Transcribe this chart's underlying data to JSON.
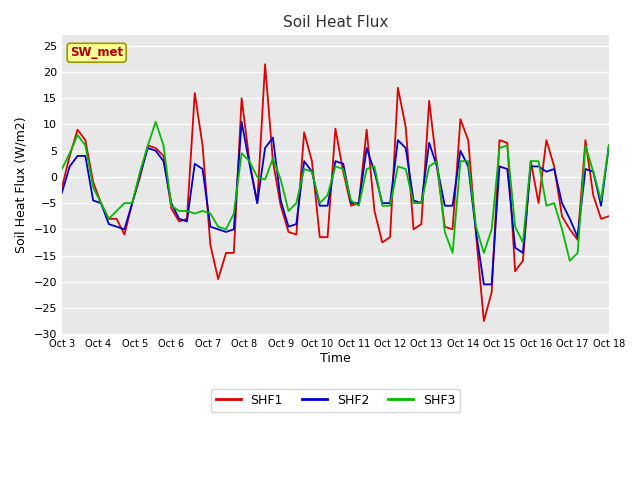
{
  "title": "Soil Heat Flux",
  "xlabel": "Time",
  "ylabel": "Soil Heat Flux (W/m2)",
  "ylim": [
    -30,
    27
  ],
  "yticks": [
    -30,
    -25,
    -20,
    -15,
    -10,
    -5,
    0,
    5,
    10,
    15,
    20,
    25
  ],
  "xtick_labels": [
    "Oct 3",
    "Oct 4",
    "Oct 5",
    "Oct 6",
    "Oct 7",
    "Oct 8",
    "Oct 9",
    "Oct 10",
    "Oct 11",
    "Oct 12",
    "Oct 13",
    "Oct 14",
    "Oct 15",
    "Oct 16",
    "Oct 17",
    "Oct 18"
  ],
  "legend_label": "SW_met",
  "series_labels": [
    "SHF1",
    "SHF2",
    "SHF3"
  ],
  "colors": [
    "#dd0000",
    "#0000cc",
    "#00bb00"
  ],
  "fig_bg": "#ffffff",
  "plot_bg": "#e8e8e8",
  "shf1": [
    -2.0,
    4.0,
    9.0,
    7.0,
    -1.0,
    -5.0,
    -8.0,
    -8.0,
    -11.0,
    -5.0,
    0.0,
    6.0,
    5.5,
    4.0,
    -6.0,
    -8.5,
    -8.0,
    16.0,
    6.0,
    -13.0,
    -19.5,
    -14.5,
    -14.5,
    15.0,
    3.0,
    -5.0,
    21.5,
    3.0,
    -5.5,
    -10.5,
    -11.0,
    8.5,
    3.0,
    -11.5,
    -11.5,
    9.2,
    1.0,
    -5.5,
    -5.0,
    9.0,
    -6.5,
    -12.5,
    -11.5,
    17.0,
    9.5,
    -10.0,
    -9.0,
    14.5,
    2.0,
    -9.5,
    -10.0,
    11.0,
    7.0,
    -11.0,
    -27.5,
    -22.0,
    7.0,
    6.5,
    -18.0,
    -16.0,
    3.0,
    -5.0,
    7.0,
    2.0,
    -7.5,
    -10.0,
    -12.0,
    7.0,
    -3.5,
    -8.0,
    -7.5
  ],
  "shf2": [
    -3.0,
    2.0,
    4.0,
    4.0,
    -4.5,
    -5.0,
    -9.0,
    -9.5,
    -10.0,
    -5.0,
    0.5,
    5.5,
    5.0,
    3.0,
    -5.0,
    -8.0,
    -8.5,
    2.5,
    1.5,
    -9.5,
    -10.0,
    -10.5,
    -10.0,
    10.5,
    2.5,
    -5.0,
    5.5,
    7.5,
    -4.5,
    -9.5,
    -9.0,
    3.0,
    1.0,
    -5.5,
    -5.5,
    3.0,
    2.5,
    -5.0,
    -5.0,
    5.5,
    1.0,
    -5.0,
    -5.0,
    7.0,
    5.5,
    -4.5,
    -5.0,
    6.5,
    2.0,
    -5.5,
    -5.5,
    5.0,
    2.0,
    -10.5,
    -20.5,
    -20.5,
    2.0,
    1.5,
    -13.5,
    -14.5,
    2.0,
    2.0,
    1.0,
    1.5,
    -5.0,
    -8.0,
    -11.5,
    1.5,
    1.0,
    -5.5,
    6.0
  ],
  "shf3": [
    1.5,
    4.5,
    8.0,
    6.0,
    -2.0,
    -5.0,
    -8.0,
    -6.5,
    -5.0,
    -5.0,
    1.0,
    6.0,
    10.5,
    6.0,
    -5.5,
    -6.5,
    -6.5,
    -7.0,
    -6.5,
    -7.0,
    -9.5,
    -10.0,
    -7.0,
    4.5,
    3.0,
    0.0,
    -0.5,
    3.5,
    -0.5,
    -6.5,
    -5.0,
    1.5,
    1.0,
    -5.0,
    -3.5,
    2.0,
    1.5,
    -4.5,
    -5.5,
    1.5,
    2.0,
    -5.5,
    -5.5,
    2.0,
    1.5,
    -5.0,
    -5.0,
    2.0,
    3.0,
    -10.5,
    -14.5,
    3.0,
    3.0,
    -9.5,
    -14.5,
    -10.0,
    5.5,
    6.0,
    -9.5,
    -12.5,
    3.0,
    3.0,
    -5.5,
    -5.0,
    -10.0,
    -16.0,
    -14.5,
    6.0,
    1.0,
    -4.5,
    6.0
  ]
}
